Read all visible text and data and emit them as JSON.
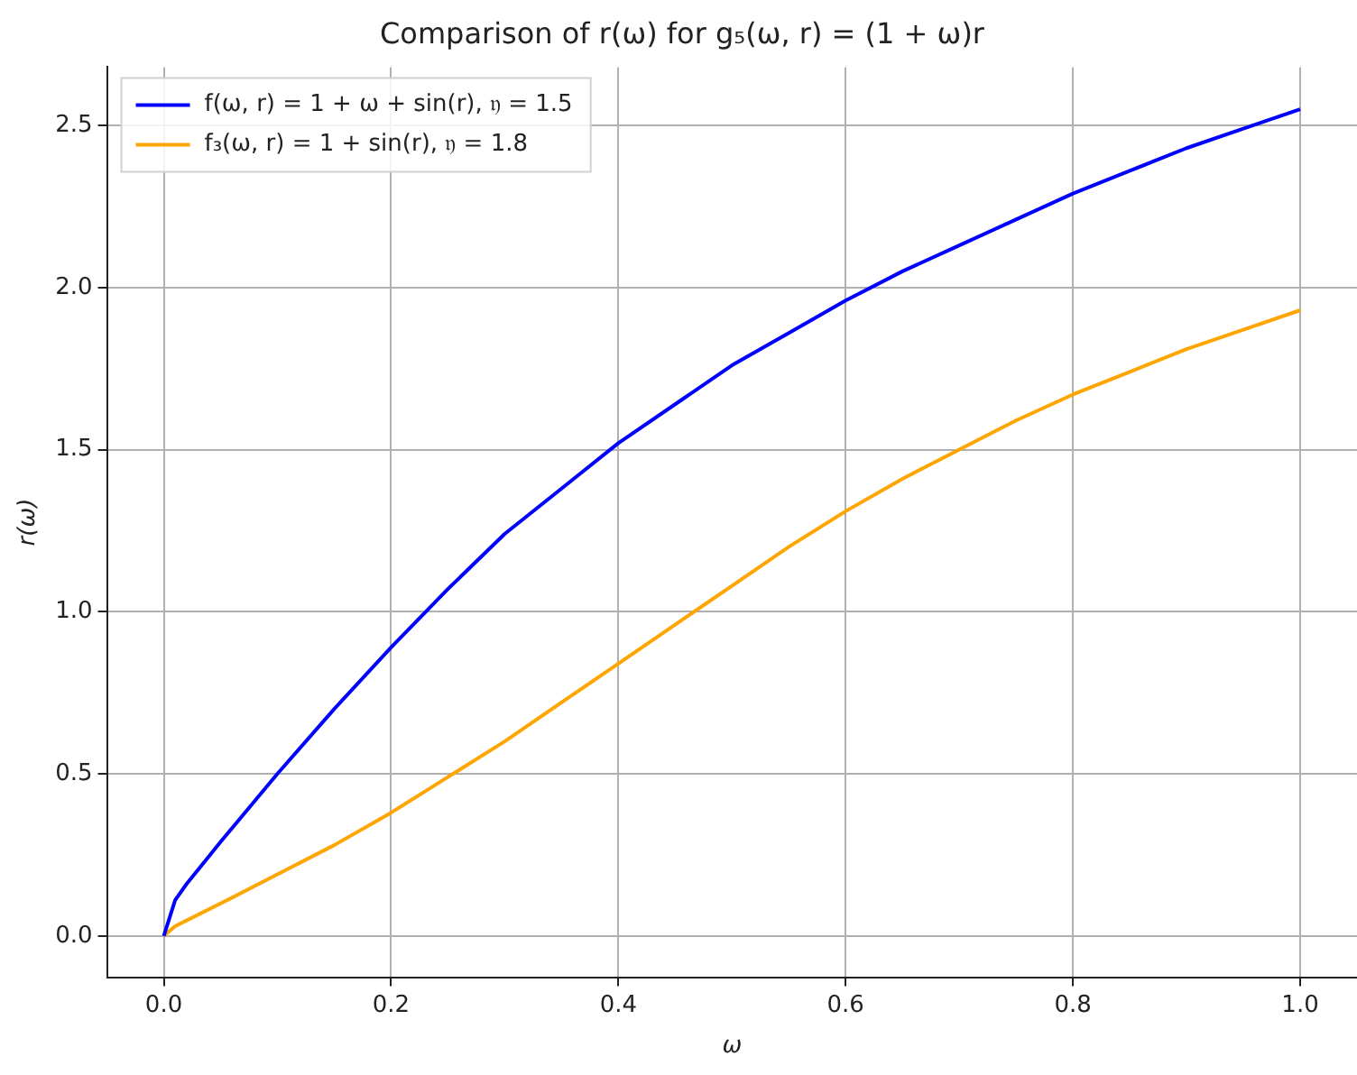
{
  "chart_data": {
    "type": "line",
    "title": "Comparison of r(ω) for g₅(ω, r) = (1 + ω)r",
    "xlabel": "ω",
    "ylabel": "r(ω)",
    "xlim": [
      -0.05,
      1.05
    ],
    "ylim": [
      -0.1275,
      2.68
    ],
    "xticks": [
      {
        "value": 0,
        "label": "0.0"
      },
      0.2,
      0.4,
      0.6,
      0.8,
      {
        "value": 1,
        "label": "1.0"
      }
    ],
    "yticks": [
      {
        "value": 0,
        "label": "0.0"
      },
      0.5,
      {
        "value": 1,
        "label": "1.0"
      },
      1.5,
      {
        "value": 2,
        "label": "2.0"
      },
      2.5
    ],
    "grid": true,
    "legend": "top left",
    "marker": "none",
    "line_style": "solid",
    "series": [
      {
        "name": "f(ω, r) = 1 + ω + sin(r), 𝔶 = 1.5",
        "color": "#0000ff",
        "x": [
          0,
          0.01,
          0.02,
          0.05,
          0.1,
          0.15,
          0.2,
          0.25,
          0.3,
          0.35,
          0.4,
          0.45,
          0.5,
          0.55,
          0.6,
          0.65,
          0.7,
          0.75,
          0.8,
          0.85,
          0.9,
          0.95,
          1.0
        ],
        "values": [
          0,
          0.11,
          0.16,
          0.29,
          0.5,
          0.7,
          0.89,
          1.07,
          1.24,
          1.38,
          1.52,
          1.64,
          1.76,
          1.86,
          1.96,
          2.05,
          2.13,
          2.21,
          2.29,
          2.36,
          2.43,
          2.49,
          2.55
        ]
      },
      {
        "name": "f₃(ω, r) = 1 + sin(r), 𝔶 = 1.8",
        "color": "#ffa500",
        "x": [
          0,
          0.01,
          0.05,
          0.1,
          0.15,
          0.2,
          0.25,
          0.3,
          0.35,
          0.4,
          0.45,
          0.5,
          0.55,
          0.6,
          0.65,
          0.7,
          0.75,
          0.8,
          0.85,
          0.9,
          0.95,
          1.0
        ],
        "values": [
          0,
          0.03,
          0.1,
          0.19,
          0.28,
          0.38,
          0.49,
          0.6,
          0.72,
          0.84,
          0.96,
          1.08,
          1.2,
          1.31,
          1.41,
          1.5,
          1.59,
          1.67,
          1.74,
          1.81,
          1.87,
          1.93
        ]
      }
    ]
  }
}
